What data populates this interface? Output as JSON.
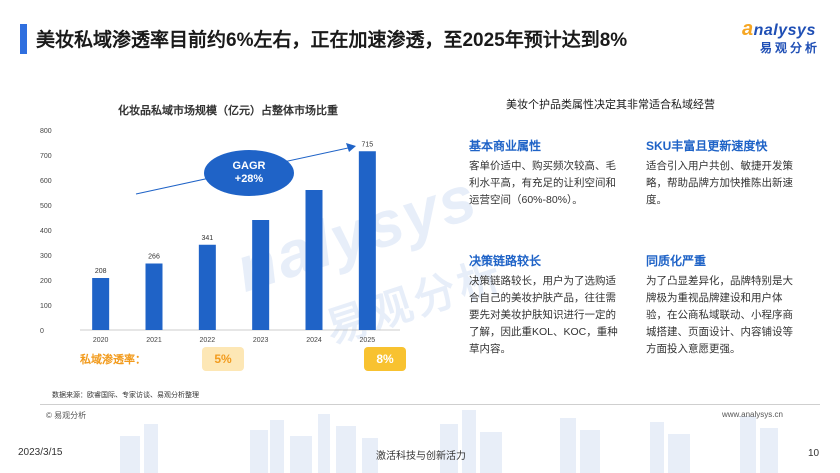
{
  "header": {
    "title": "美妆私域渗透率目前约6%左右，正在加速渗透，至2025年预计达到8%",
    "logo_main": "nalysys",
    "logo_sub": "易观分析"
  },
  "chart_data": {
    "type": "bar",
    "title": "化妆品私域市场规模（亿元）占整体市场比重",
    "categories": [
      "2020",
      "2021",
      "2022",
      "2023",
      "2024",
      "2025"
    ],
    "values": [
      208,
      266,
      341,
      440,
      560,
      715
    ],
    "data_labels": [
      "208",
      "266",
      "341",
      "",
      "",
      "715"
    ],
    "ylim": [
      0,
      800
    ],
    "yticks": [
      0,
      100,
      200,
      300,
      400,
      500,
      600,
      700,
      800
    ],
    "bar_color": "#1f63c7",
    "annotation": {
      "line1": "GAGR",
      "line2": "+28%"
    },
    "penetration": {
      "label": "私域渗透率：",
      "values": [
        "5%",
        "8%"
      ]
    },
    "source": "数据来源：欧睿国际、专家访谈、易观分析整理"
  },
  "right": {
    "title": "美妆个护品类属性决定其非常适合私域经营",
    "attributes": [
      {
        "head": "基本商业属性",
        "text": "客单价适中、购买频次较高、毛利水平高，有充足的让利空间和运营空间（60%-80%）。"
      },
      {
        "head": "SKU丰富且更新速度快",
        "text": "适合引入用户共创、敏捷开发策略，帮助品牌方加快推陈出新速度。"
      },
      {
        "head": "决策链路较长",
        "text": "决策链路较长，用户为了选购适合自己的美妆护肤产品，往往需要先对美妆护肤知识进行一定的了解，因此重KOL、KOC，重种草内容。"
      },
      {
        "head": "同质化严重",
        "text": "为了凸显差异化，品牌特别是大牌极为重视品牌建设和用户体验，在公商私域联动、小程序商城搭建、页面设计、内容铺设等方面投入意愿更强。"
      }
    ]
  },
  "footer": {
    "copyright": "© 易观分析",
    "website": "www.analysys.cn",
    "date": "2023/3/15",
    "slogan": "激活科技与创新活力",
    "page": "10"
  },
  "watermark": {
    "line1": "nalysys",
    "line2": "易观分析"
  },
  "colors": {
    "accent": "#1f63c7",
    "highlight": "#f29b1d"
  }
}
